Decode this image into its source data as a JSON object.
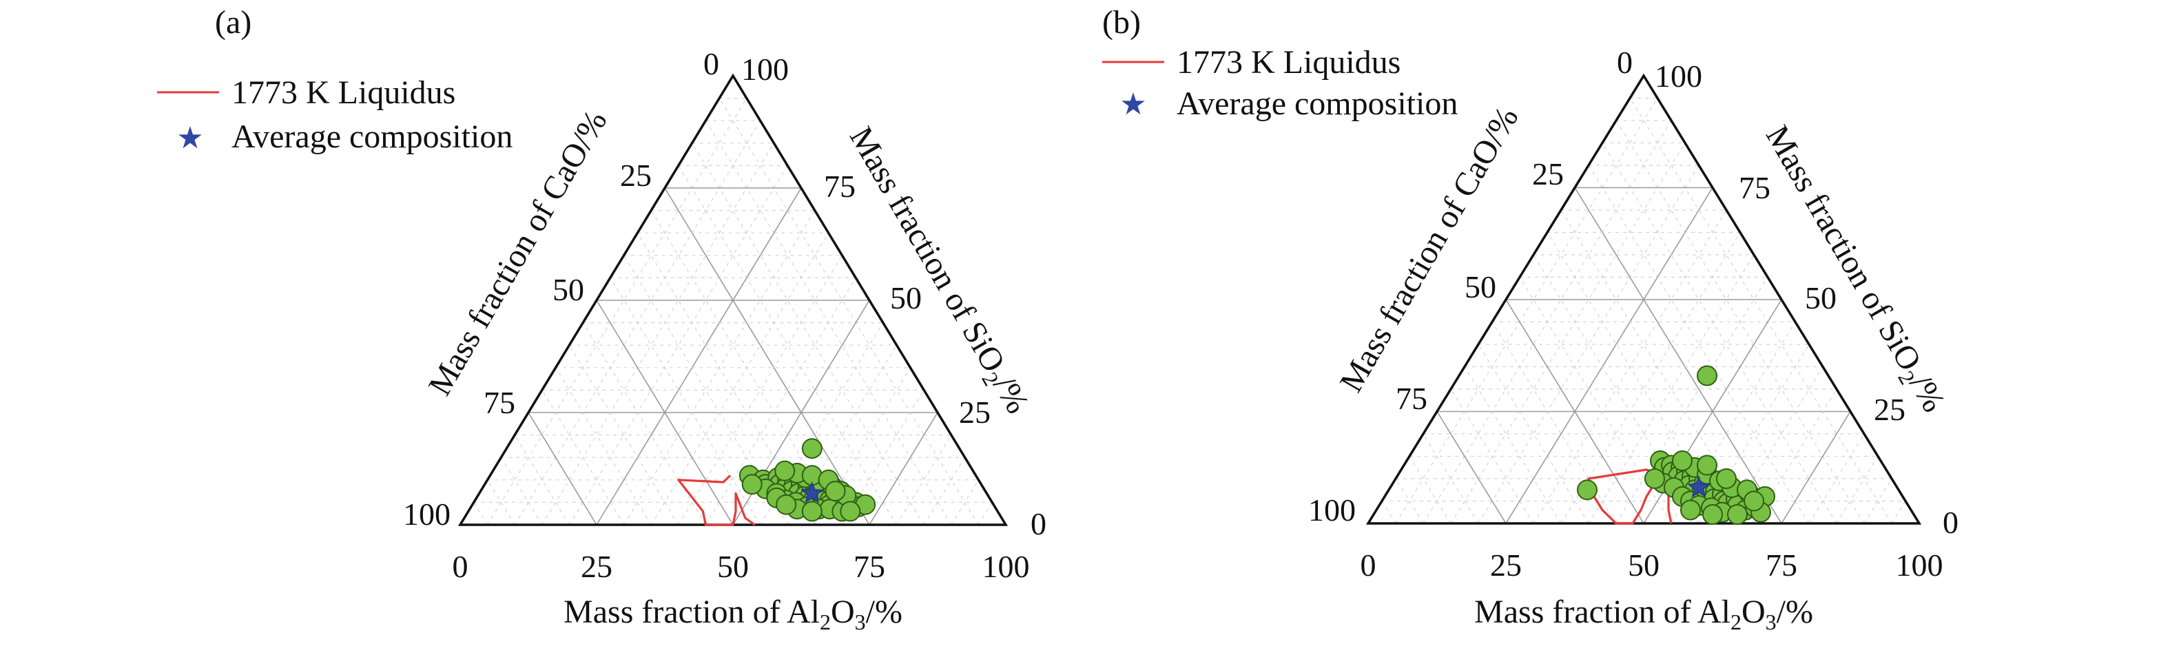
{
  "chart_data": [
    {
      "type": "ternary-scatter",
      "panel_label": "(a)",
      "legend": {
        "placement": "top-left",
        "liquidus_label": "1773 K Liquidus",
        "average_label": "Average composition"
      },
      "axes": {
        "a": {
          "component": "Al2O3",
          "title_pre": "Mass fraction of Al",
          "sub1": "2",
          "mid": "O",
          "sub2": "3",
          "title_post": "/%"
        },
        "b": {
          "component": "SiO2",
          "title_pre": "Mass fraction of SiO",
          "sub1": "2",
          "title_post": "/%"
        },
        "c": {
          "component": "CaO",
          "title_pre": "Mass fraction of CaO/%"
        }
      },
      "bottom_ticks": [
        "0",
        "25",
        "50",
        "75",
        "100"
      ],
      "right_ticks": [
        "100",
        "75",
        "50",
        "25",
        "0"
      ],
      "left_ticks": [
        "0",
        "25",
        "50",
        "75",
        "100"
      ],
      "grid": true,
      "colors": {
        "point": "#77c043",
        "liquidus": "#e53a3a",
        "average": "#2f46a4"
      },
      "points": [
        {
          "a": 56,
          "b": 17
        },
        {
          "a": 47.5,
          "b": 11
        },
        {
          "a": 50.5,
          "b": 10
        },
        {
          "a": 51.5,
          "b": 9
        },
        {
          "a": 53,
          "b": 10.5
        },
        {
          "a": 54,
          "b": 9
        },
        {
          "a": 55,
          "b": 10
        },
        {
          "a": 55.5,
          "b": 8
        },
        {
          "a": 56.5,
          "b": 9.5
        },
        {
          "a": 57,
          "b": 7.5
        },
        {
          "a": 58,
          "b": 9
        },
        {
          "a": 58.5,
          "b": 7
        },
        {
          "a": 59.5,
          "b": 8.5
        },
        {
          "a": 60,
          "b": 6.5
        },
        {
          "a": 60.5,
          "b": 8
        },
        {
          "a": 61,
          "b": 6
        },
        {
          "a": 62,
          "b": 7.5
        },
        {
          "a": 62,
          "b": 5.5
        },
        {
          "a": 63,
          "b": 7
        },
        {
          "a": 63.5,
          "b": 5
        },
        {
          "a": 64,
          "b": 6.5
        },
        {
          "a": 65,
          "b": 5.5
        },
        {
          "a": 65.5,
          "b": 4.5
        },
        {
          "a": 66.5,
          "b": 6
        },
        {
          "a": 67,
          "b": 4.5
        },
        {
          "a": 68,
          "b": 5
        },
        {
          "a": 69,
          "b": 4
        },
        {
          "a": 70,
          "b": 5
        },
        {
          "a": 71,
          "b": 4
        },
        {
          "a": 72,
          "b": 4.5
        },
        {
          "a": 52,
          "b": 8
        },
        {
          "a": 54.5,
          "b": 7
        },
        {
          "a": 57,
          "b": 5.5
        },
        {
          "a": 59,
          "b": 5
        },
        {
          "a": 61.5,
          "b": 4
        },
        {
          "a": 64,
          "b": 3.5
        },
        {
          "a": 66,
          "b": 3.5
        },
        {
          "a": 68.5,
          "b": 3
        },
        {
          "a": 58,
          "b": 10.5
        },
        {
          "a": 61,
          "b": 9.5
        },
        {
          "a": 64,
          "b": 8.5
        },
        {
          "a": 66,
          "b": 7.5
        },
        {
          "a": 56,
          "b": 11.5
        },
        {
          "a": 59,
          "b": 11
        },
        {
          "a": 62.5,
          "b": 10
        },
        {
          "a": 53.5,
          "b": 12
        },
        {
          "a": 49,
          "b": 9
        },
        {
          "a": 55,
          "b": 6
        },
        {
          "a": 60,
          "b": 3.5
        },
        {
          "a": 63,
          "b": 3
        },
        {
          "a": 67.5,
          "b": 6.5
        },
        {
          "a": 70,
          "b": 3
        },
        {
          "a": 57.5,
          "b": 4.5
        },
        {
          "a": 65,
          "b": 7.5
        }
      ],
      "average": {
        "a": 61,
        "b": 7
      },
      "liquidus": [
        {
          "a": 44,
          "b": 11
        },
        {
          "a": 43.5,
          "b": 9.5
        },
        {
          "a": 35,
          "b": 10
        },
        {
          "a": 43,
          "b": 3
        },
        {
          "a": 45,
          "b": 0
        },
        {
          "a": 50,
          "b": 0
        },
        {
          "a": 49,
          "b": 3
        },
        {
          "a": 48,
          "b": 5
        },
        {
          "a": 47,
          "b": 7
        },
        {
          "a": 51.5,
          "b": 1.5
        },
        {
          "a": 54,
          "b": 0
        }
      ]
    },
    {
      "type": "ternary-scatter",
      "panel_label": "(b)",
      "legend": {
        "placement": "top-left",
        "liquidus_label": "1773 K Liquidus",
        "average_label": "Average composition"
      },
      "axes": {
        "a": {
          "component": "Al2O3",
          "title_pre": "Mass fraction of Al",
          "sub1": "2",
          "mid": "O",
          "sub2": "3",
          "title_post": "/%"
        },
        "b": {
          "component": "SiO2",
          "title_pre": "Mass fraction of SiO",
          "sub1": "2",
          "title_post": "/%"
        },
        "c": {
          "component": "CaO",
          "title_pre": "Mass fraction of CaO/%"
        }
      },
      "bottom_ticks": [
        "0",
        "25",
        "50",
        "75",
        "100"
      ],
      "right_ticks": [
        "100",
        "75",
        "50",
        "25",
        "0"
      ],
      "left_ticks": [
        "0",
        "25",
        "50",
        "75",
        "100"
      ],
      "grid": true,
      "colors": {
        "point": "#77c043",
        "liquidus": "#e53a3a",
        "average": "#2f46a4"
      },
      "points": [
        {
          "a": 45,
          "b": 33
        },
        {
          "a": 36,
          "b": 7.5
        },
        {
          "a": 46,
          "b": 14
        },
        {
          "a": 47.5,
          "b": 12.5
        },
        {
          "a": 48.5,
          "b": 13
        },
        {
          "a": 49.5,
          "b": 11.5
        },
        {
          "a": 50.5,
          "b": 12.5
        },
        {
          "a": 51,
          "b": 10.5
        },
        {
          "a": 52,
          "b": 11.5
        },
        {
          "a": 52.5,
          "b": 9.5
        },
        {
          "a": 53.5,
          "b": 10.5
        },
        {
          "a": 54,
          "b": 8.5
        },
        {
          "a": 55,
          "b": 10
        },
        {
          "a": 55.5,
          "b": 7.5
        },
        {
          "a": 56.5,
          "b": 9
        },
        {
          "a": 57,
          "b": 7
        },
        {
          "a": 58,
          "b": 8
        },
        {
          "a": 58.5,
          "b": 6
        },
        {
          "a": 59.5,
          "b": 7
        },
        {
          "a": 60,
          "b": 5.5
        },
        {
          "a": 61,
          "b": 6.5
        },
        {
          "a": 62,
          "b": 5
        },
        {
          "a": 63,
          "b": 4.5
        },
        {
          "a": 64,
          "b": 5.5
        },
        {
          "a": 65,
          "b": 4
        },
        {
          "a": 66,
          "b": 6.5
        },
        {
          "a": 67,
          "b": 3
        },
        {
          "a": 68.5,
          "b": 3.5
        },
        {
          "a": 69,
          "b": 6
        },
        {
          "a": 70,
          "b": 2.5
        },
        {
          "a": 49,
          "b": 9
        },
        {
          "a": 51.5,
          "b": 8
        },
        {
          "a": 54,
          "b": 6
        },
        {
          "a": 56,
          "b": 5
        },
        {
          "a": 58,
          "b": 4
        },
        {
          "a": 60.5,
          "b": 3.5
        },
        {
          "a": 63,
          "b": 2.5
        },
        {
          "a": 53,
          "b": 12.5
        },
        {
          "a": 56,
          "b": 11
        },
        {
          "a": 59,
          "b": 9.5
        },
        {
          "a": 62,
          "b": 8
        },
        {
          "a": 65,
          "b": 7.5
        },
        {
          "a": 47,
          "b": 10
        },
        {
          "a": 50,
          "b": 14
        },
        {
          "a": 57,
          "b": 3
        },
        {
          "a": 61.5,
          "b": 2
        },
        {
          "a": 66,
          "b": 2
        },
        {
          "a": 67.5,
          "b": 5
        },
        {
          "a": 55,
          "b": 13
        },
        {
          "a": 60,
          "b": 10
        }
      ],
      "average": {
        "a": 56,
        "b": 8
      },
      "liquidus": [
        {
          "a": 47,
          "b": 11
        },
        {
          "a": 44.5,
          "b": 12
        },
        {
          "a": 35,
          "b": 10
        },
        {
          "a": 37,
          "b": 7
        },
        {
          "a": 39,
          "b": 5
        },
        {
          "a": 41,
          "b": 3
        },
        {
          "a": 43,
          "b": 1.5
        },
        {
          "a": 45,
          "b": 0
        },
        {
          "a": 48,
          "b": 0
        },
        {
          "a": 48,
          "b": 3
        },
        {
          "a": 47.5,
          "b": 6
        },
        {
          "a": 47.5,
          "b": 9
        },
        {
          "a": 49,
          "b": 12
        },
        {
          "a": 51,
          "b": 7
        },
        {
          "a": 53,
          "b": 3
        },
        {
          "a": 55,
          "b": 0
        }
      ]
    }
  ]
}
